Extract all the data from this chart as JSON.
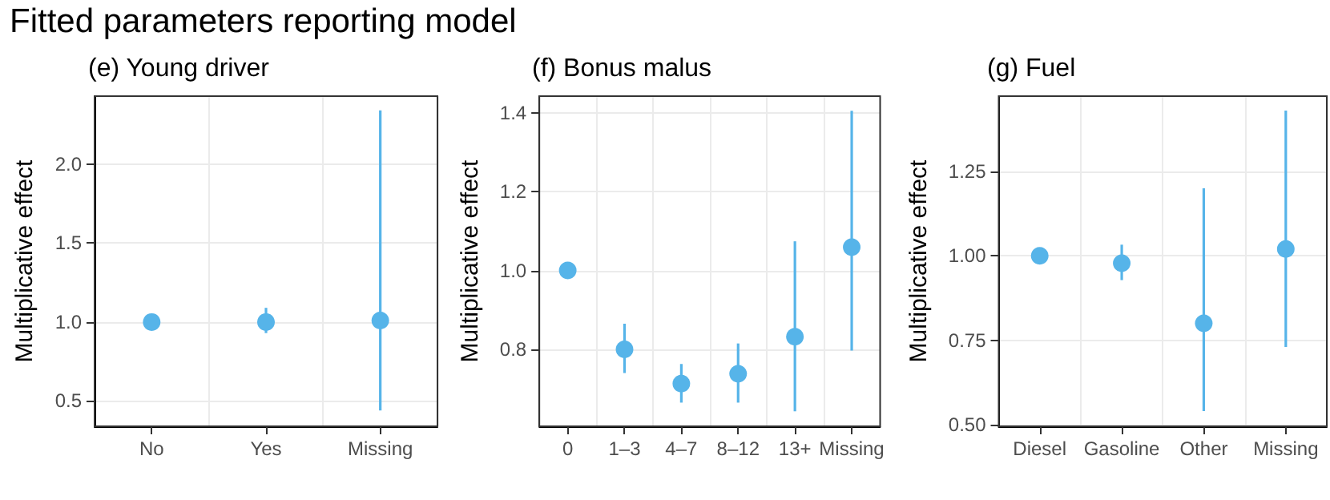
{
  "chart_data": [
    {
      "type": "scatter",
      "title": "(e) Young driver",
      "ylabel": "Multiplicative effect",
      "annotations": [
        "Fitted parameters reporting model"
      ],
      "categories": [
        "No",
        "Yes",
        "Missing"
      ],
      "series": [
        {
          "color": "#56b4e9",
          "values": [
            1.0,
            1.0,
            1.01
          ],
          "errors": [
            null,
            [
              0.93,
              1.09
            ],
            [
              0.44,
              2.34
            ]
          ]
        }
      ],
      "ylim": [
        0.34,
        2.43
      ],
      "yticks": [
        {
          "value": 0.5,
          "label": "0.5"
        },
        {
          "value": 1,
          "label": "1.0"
        },
        {
          "value": 1.5,
          "label": "1.5"
        },
        {
          "value": 2,
          "label": "2.0"
        }
      ],
      "grid": true,
      "marker": "circle"
    },
    {
      "type": "scatter",
      "title": "(f) Bonus malus",
      "ylabel": "Multiplicative effect",
      "categories": [
        "0",
        "1–3",
        "4–7",
        "8–12",
        "13+",
        "Missing"
      ],
      "series": [
        {
          "color": "#56b4e9",
          "values": [
            1.0,
            0.8,
            0.713,
            0.738,
            0.832,
            1.059
          ],
          "errors": [
            null,
            [
              0.74,
              0.865
            ],
            [
              0.665,
              0.763
            ],
            [
              0.665,
              0.815
            ],
            [
              0.643,
              1.074
            ],
            [
              0.797,
              1.405
            ]
          ]
        }
      ],
      "ylim": [
        0.605,
        1.442
      ],
      "yticks": [
        {
          "value": 0.8,
          "label": "0.8"
        },
        {
          "value": 1,
          "label": "1.0"
        },
        {
          "value": 1.2,
          "label": "1.2"
        },
        {
          "value": 1.4,
          "label": "1.4"
        }
      ],
      "grid": true,
      "marker": "circle"
    },
    {
      "type": "scatter",
      "title": "(g) Fuel",
      "ylabel": "Multiplicative effect",
      "categories": [
        "Diesel",
        "Gasoline",
        "Other",
        "Missing"
      ],
      "series": [
        {
          "color": "#56b4e9",
          "values": [
            1.0,
            0.978,
            0.8,
            1.02
          ],
          "errors": [
            null,
            [
              0.928,
              1.033
            ],
            [
              0.54,
              1.2
            ],
            [
              0.73,
              1.43
            ]
          ]
        }
      ],
      "ylim": [
        0.495,
        1.473
      ],
      "yticks": [
        {
          "value": 0.5,
          "label": "0.50"
        },
        {
          "value": 0.75,
          "label": "0.75"
        },
        {
          "value": 1,
          "label": "1.00"
        },
        {
          "value": 1.25,
          "label": "1.25"
        }
      ],
      "grid": true,
      "marker": "circle"
    }
  ]
}
